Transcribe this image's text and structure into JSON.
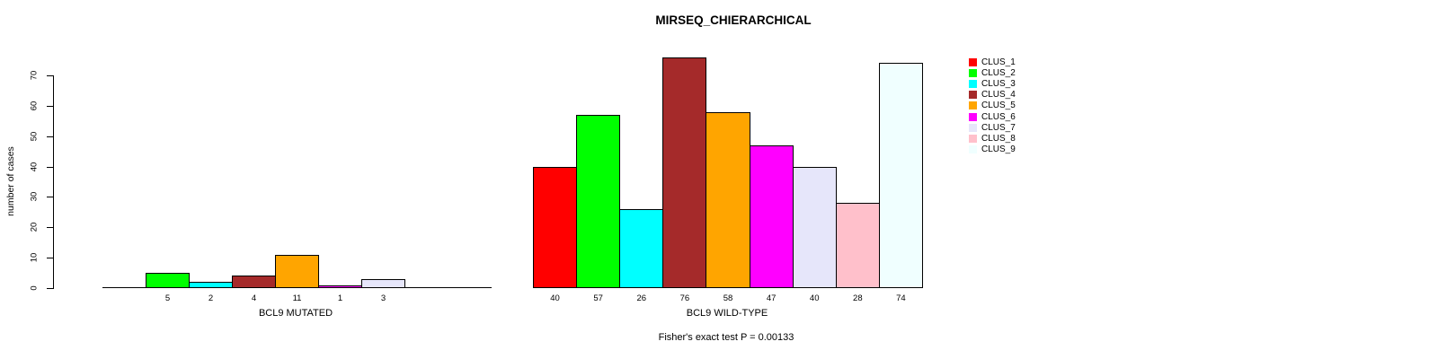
{
  "chart_data": {
    "type": "bar",
    "title": "MIRSEQ_CHIERARCHICAL",
    "ylabel": "number of cases",
    "footer": "Fisher's exact test P = 0.00133",
    "yaxis": {
      "ticks": [
        0,
        10,
        20,
        30,
        40,
        50,
        60,
        70
      ],
      "min": 0,
      "max": 70
    },
    "grid": false,
    "legend_position": "right",
    "legend": {
      "entries": [
        {
          "label": "CLUS_1",
          "color": "#FF0000"
        },
        {
          "label": "CLUS_2",
          "color": "#00FF00"
        },
        {
          "label": "CLUS_3",
          "color": "#00FFFF"
        },
        {
          "label": "CLUS_4",
          "color": "#A52A2A"
        },
        {
          "label": "CLUS_5",
          "color": "#FFA500"
        },
        {
          "label": "CLUS_6",
          "color": "#FF00FF"
        },
        {
          "label": "CLUS_7",
          "color": "#E6E6FA"
        },
        {
          "label": "CLUS_8",
          "color": "#FFC0CB"
        },
        {
          "label": "CLUS_9",
          "color": "#F0FFFF"
        }
      ]
    },
    "groups": [
      {
        "label": "BCL9 MUTATED",
        "categories": [
          "CLUS_1",
          "CLUS_2",
          "CLUS_3",
          "CLUS_4",
          "CLUS_5",
          "CLUS_6",
          "CLUS_7",
          "CLUS_8",
          "CLUS_9"
        ],
        "values": [
          0,
          5,
          2,
          4,
          11,
          1,
          3,
          0,
          0
        ],
        "shown_bar_labels": [
          "5",
          "2",
          "4",
          "11",
          "1",
          "3"
        ]
      },
      {
        "label": "BCL9 WILD-TYPE",
        "categories": [
          "CLUS_1",
          "CLUS_2",
          "CLUS_3",
          "CLUS_4",
          "CLUS_5",
          "CLUS_6",
          "CLUS_7",
          "CLUS_8",
          "CLUS_9"
        ],
        "values": [
          40,
          57,
          26,
          76,
          58,
          47,
          40,
          28,
          74
        ],
        "shown_bar_labels": [
          "40",
          "57",
          "26",
          "76",
          "58",
          "47",
          "40",
          "28",
          "74"
        ]
      }
    ]
  }
}
